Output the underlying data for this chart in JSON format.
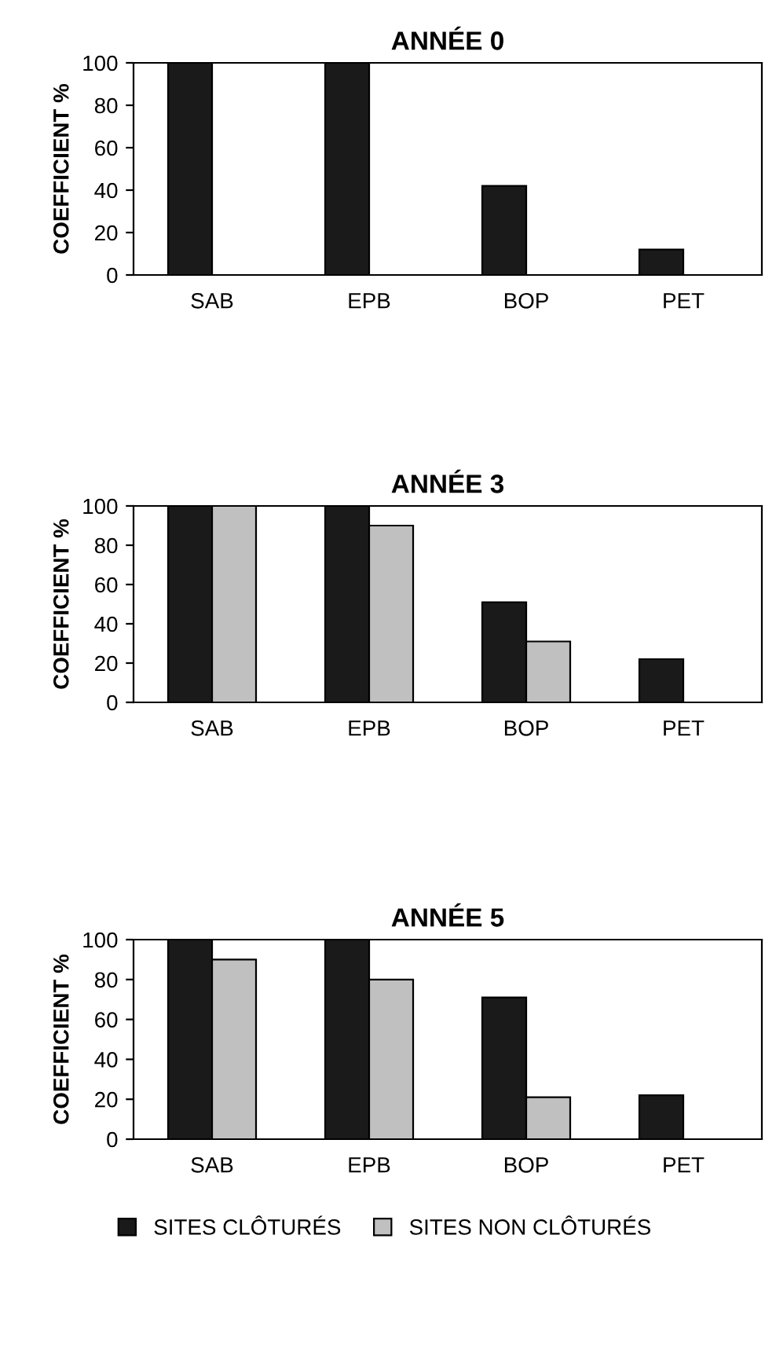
{
  "chart_data": [
    {
      "type": "bar",
      "title": "ANNÉE 0",
      "ylabel": "COEFFICIENT %",
      "categories": [
        "SAB",
        "EPB",
        "BOP",
        "PET"
      ],
      "ylim": [
        0,
        100
      ],
      "yticks": [
        0,
        20,
        40,
        60,
        80,
        100
      ],
      "grid": false,
      "series": [
        {
          "color": "#1a1a1a",
          "values": [
            100,
            100,
            42,
            12
          ]
        },
        {
          "color": "#c0c0c0",
          "values": [
            null,
            null,
            null,
            null
          ]
        }
      ]
    },
    {
      "type": "bar",
      "title": "ANNÉE 3",
      "ylabel": "COEFFICIENT %",
      "categories": [
        "SAB",
        "EPB",
        "BOP",
        "PET"
      ],
      "ylim": [
        0,
        100
      ],
      "yticks": [
        0,
        20,
        40,
        60,
        80,
        100
      ],
      "grid": false,
      "series": [
        {
          "color": "#1a1a1a",
          "values": [
            100,
            100,
            51,
            22
          ]
        },
        {
          "color": "#c0c0c0",
          "values": [
            100,
            90,
            31,
            null
          ]
        }
      ]
    },
    {
      "type": "bar",
      "title": "ANNÉE 5",
      "ylabel": "COEFFICIENT %",
      "categories": [
        "SAB",
        "EPB",
        "BOP",
        "PET"
      ],
      "ylim": [
        0,
        100
      ],
      "yticks": [
        0,
        20,
        40,
        60,
        80,
        100
      ],
      "grid": false,
      "legend": "bottom",
      "series": [
        {
          "name": "SITES CLÔTURÉS",
          "color": "#1a1a1a",
          "values": [
            100,
            100,
            71,
            22
          ]
        },
        {
          "name": "SITES NON CLÔTURÉS",
          "color": "#c0c0c0",
          "values": [
            90,
            80,
            21,
            null
          ]
        }
      ]
    }
  ]
}
